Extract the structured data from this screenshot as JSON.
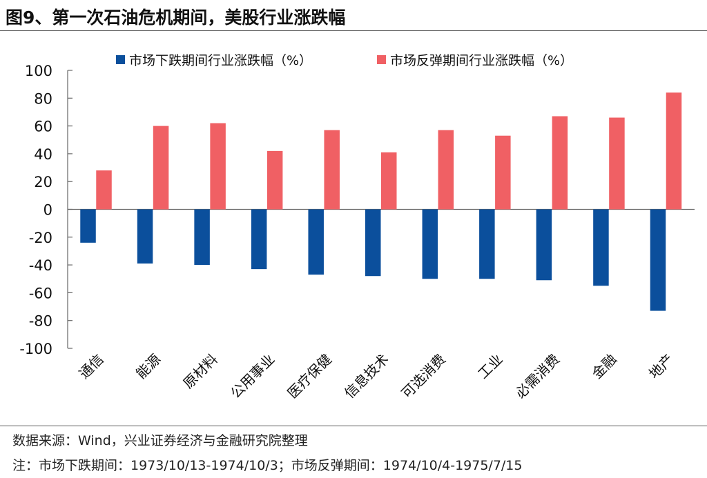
{
  "title": "图9、第一次石油危机期间，美股行业涨跌幅",
  "source": "数据来源：Wind，兴业证券经济与金融研究院整理",
  "note": "注：市场下跌期间：1973/10/13-1974/10/3；市场反弹期间：1974/10/4-1975/7/15",
  "chart_data": {
    "type": "bar",
    "categories": [
      "通信",
      "能源",
      "原材料",
      "公用事业",
      "医疗保健",
      "信息技术",
      "可选消费",
      "工业",
      "必需消费",
      "金融",
      "地产"
    ],
    "series": [
      {
        "name": "市场下跌期间行业涨跌幅（%）",
        "color": "#0b4f9c",
        "values": [
          -24,
          -39,
          -40,
          -43,
          -47,
          -48,
          -50,
          -50,
          -51,
          -55,
          -73
        ]
      },
      {
        "name": "市场反弹期间行业涨跌幅（%）",
        "color": "#f06064",
        "values": [
          28,
          60,
          62,
          42,
          57,
          41,
          57,
          53,
          67,
          66,
          84
        ]
      }
    ],
    "ylim": [
      -100,
      100
    ],
    "yticks": [
      100,
      80,
      60,
      40,
      20,
      0,
      -20,
      -40,
      -60,
      -80,
      -100
    ],
    "legend": "top",
    "grid": false
  }
}
